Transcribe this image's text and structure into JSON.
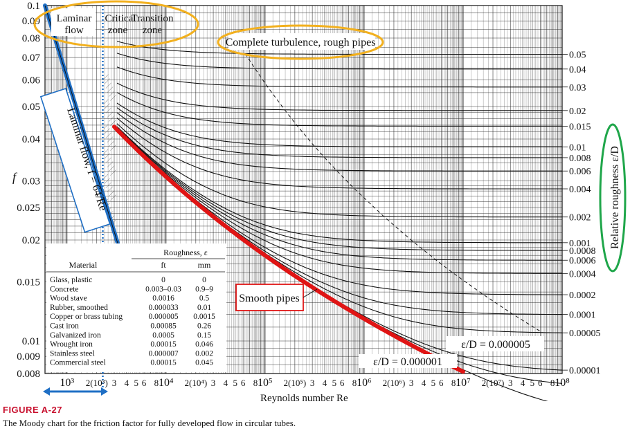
{
  "figure": {
    "title": "FIGURE A-27",
    "caption": "The Moody chart for the friction factor for fully developed flow in circular tubes."
  },
  "chart_data": {
    "type": "line",
    "xlabel": "Reynolds number Re",
    "ylabel": "f",
    "y2label": "Relative roughness ε/D",
    "xscale": "log",
    "yscale": "log",
    "xlim": [
      600,
      100000000
    ],
    "ylim": [
      0.008,
      0.1
    ],
    "grid": true,
    "x_tick_labels": [
      {
        "x": 1000,
        "label": "10³"
      },
      {
        "x": 2000,
        "label": "2(10³)"
      },
      {
        "x": 3000,
        "label": "3"
      },
      {
        "x": 4000,
        "label": "4"
      },
      {
        "x": 5000,
        "label": "5"
      },
      {
        "x": 6000,
        "label": "6"
      },
      {
        "x": 8000,
        "label": "8"
      },
      {
        "x": 10000,
        "label": "10⁴"
      },
      {
        "x": 20000,
        "label": "2(10⁴)"
      },
      {
        "x": 30000,
        "label": "3"
      },
      {
        "x": 40000,
        "label": "4"
      },
      {
        "x": 50000,
        "label": "5"
      },
      {
        "x": 60000,
        "label": "6"
      },
      {
        "x": 80000,
        "label": "8"
      },
      {
        "x": 100000,
        "label": "10⁵"
      },
      {
        "x": 200000,
        "label": "2(10⁵)"
      },
      {
        "x": 300000,
        "label": "3"
      },
      {
        "x": 400000,
        "label": "4"
      },
      {
        "x": 500000,
        "label": "5"
      },
      {
        "x": 600000,
        "label": "6"
      },
      {
        "x": 800000,
        "label": "8"
      },
      {
        "x": 1000000,
        "label": "10⁶"
      },
      {
        "x": 2000000,
        "label": "2(10⁶)"
      },
      {
        "x": 3000000,
        "label": "3"
      },
      {
        "x": 4000000,
        "label": "4"
      },
      {
        "x": 5000000,
        "label": "5"
      },
      {
        "x": 6000000,
        "label": "6"
      },
      {
        "x": 8000000,
        "label": "8"
      },
      {
        "x": 10000000,
        "label": "10⁷"
      },
      {
        "x": 20000000,
        "label": "2(10⁷)"
      },
      {
        "x": 30000000,
        "label": "3"
      },
      {
        "x": 40000000,
        "label": "4"
      },
      {
        "x": 50000000,
        "label": "5"
      },
      {
        "x": 60000000,
        "label": "6"
      },
      {
        "x": 80000000,
        "label": "8"
      },
      {
        "x": 100000000,
        "label": "10⁸"
      }
    ],
    "y_tick_labels": [
      {
        "y": 0.1,
        "label": "0.1"
      },
      {
        "y": 0.09,
        "label": "0.09"
      },
      {
        "y": 0.08,
        "label": "0.08"
      },
      {
        "y": 0.07,
        "label": "0.07"
      },
      {
        "y": 0.06,
        "label": "0.06"
      },
      {
        "y": 0.05,
        "label": "0.05"
      },
      {
        "y": 0.04,
        "label": "0.04"
      },
      {
        "y": 0.03,
        "label": "0.03"
      },
      {
        "y": 0.025,
        "label": "0.025"
      },
      {
        "y": 0.02,
        "label": "0.02"
      },
      {
        "y": 0.015,
        "label": "0.015"
      },
      {
        "y": 0.01,
        "label": "0.01"
      },
      {
        "y": 0.009,
        "label": "0.009"
      },
      {
        "y": 0.008,
        "label": "0.008"
      }
    ],
    "roughness_series": [
      {
        "eps": 0.05,
        "label": "0.05"
      },
      {
        "eps": 0.04,
        "label": "0.04"
      },
      {
        "eps": 0.03,
        "label": "0.03"
      },
      {
        "eps": 0.02,
        "label": "0.02"
      },
      {
        "eps": 0.015,
        "label": "0.015"
      },
      {
        "eps": 0.01,
        "label": "0.01"
      },
      {
        "eps": 0.008,
        "label": "0.008"
      },
      {
        "eps": 0.006,
        "label": "0.006"
      },
      {
        "eps": 0.004,
        "label": "0.004"
      },
      {
        "eps": 0.002,
        "label": "0.002"
      },
      {
        "eps": 0.001,
        "label": "0.001"
      },
      {
        "eps": 0.0008,
        "label": "0.0008"
      },
      {
        "eps": 0.0006,
        "label": "0.0006"
      },
      {
        "eps": 0.0004,
        "label": "0.0004"
      },
      {
        "eps": 0.0002,
        "label": "0.0002"
      },
      {
        "eps": 0.0001,
        "label": "0.0001"
      },
      {
        "eps": 5e-05,
        "label": "0.00005"
      },
      {
        "eps": 1e-05,
        "label": "0.00001"
      },
      {
        "eps": 5e-06,
        "label": ""
      },
      {
        "eps": 1e-06,
        "label": ""
      }
    ],
    "laminar": {
      "formula": "f = 64/Re",
      "x_range": [
        600,
        4000
      ]
    },
    "smooth_pipe_range": [
      3000,
      10000000
    ],
    "annotations": {
      "laminar_flow": [
        "Laminar",
        "flow"
      ],
      "critical_zone": [
        "Critical",
        "zone"
      ],
      "transition_zone": [
        "Transition",
        "zone"
      ],
      "complete_turbulence": "Complete turbulence, rough pipes",
      "laminar_line": "Laminar flow, f = 64/Re",
      "smooth_pipes": "Smooth pipes",
      "eps_5e6": "ε/D = 0.000005",
      "eps_1e6": "ε/D = 0.000001"
    },
    "roughness_table": {
      "group_header": "Roughness, ε",
      "columns": [
        "Material",
        "ft",
        "mm"
      ],
      "rows": [
        [
          "Glass, plastic",
          "0",
          "0"
        ],
        [
          "Concrete",
          "0.003–0.03",
          "0.9–9"
        ],
        [
          "Wood stave",
          "0.0016",
          "0.5"
        ],
        [
          "Rubber, smoothed",
          "0.000033",
          "0.01"
        ],
        [
          "Copper or brass tubing",
          "0.000005",
          "0.0015"
        ],
        [
          "Cast iron",
          "0.00085",
          "0.26"
        ],
        [
          "Galvanized iron",
          "0.0005",
          "0.15"
        ],
        [
          "Wrought iron",
          "0.00015",
          "0.046"
        ],
        [
          "Stainless steel",
          "0.000007",
          "0.002"
        ],
        [
          "Commercial steel",
          "0.00015",
          "0.045"
        ]
      ]
    },
    "colors": {
      "curves": "#111111",
      "laminar_highlight": "#1f6fc5",
      "smooth_highlight": "#e01414",
      "zone_ellipse": "#f2b01e",
      "roughness_ellipse": "#1fa64a",
      "smooth_box": "#e01414"
    }
  }
}
